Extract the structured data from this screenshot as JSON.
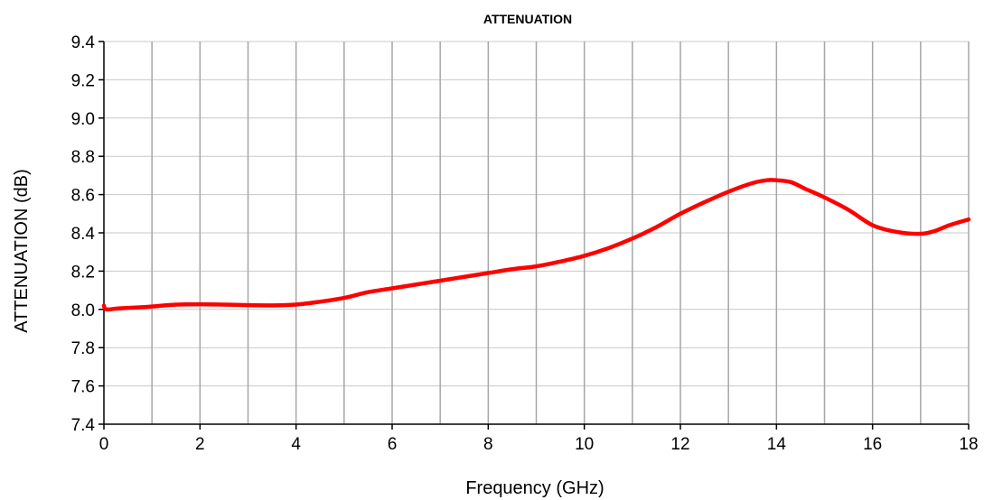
{
  "chart_data": {
    "type": "line",
    "title": "ATTENUATION",
    "xlabel": "Frequency (GHz)",
    "ylabel": "ATTENUATION (dB)",
    "xlim": [
      0,
      18
    ],
    "ylim": [
      7.4,
      9.4
    ],
    "x_ticks": [
      0,
      2,
      4,
      6,
      8,
      10,
      12,
      14,
      16,
      18
    ],
    "x_tick_labels": [
      "0",
      "2",
      "4",
      "6",
      "8",
      "10",
      "12",
      "14",
      "16",
      "18"
    ],
    "y_ticks": [
      7.4,
      7.6,
      7.8,
      8.0,
      8.2,
      8.4,
      8.6,
      8.8,
      9.0,
      9.2,
      9.4
    ],
    "y_tick_labels": [
      "7.4",
      "7.6",
      "7.8",
      "8.0",
      "8.2",
      "8.4",
      "8.6",
      "8.8",
      "9.0",
      "9.2",
      "9.4"
    ],
    "x_grid_every": 1,
    "grid": true,
    "legend": "none",
    "series": [
      {
        "color": "#ff0000",
        "x": [
          0,
          0.05,
          0.3,
          0.7,
          1.0,
          1.5,
          2.0,
          2.5,
          3.0,
          3.5,
          4.0,
          4.5,
          5.0,
          5.5,
          6.0,
          6.5,
          7.0,
          7.5,
          8.0,
          8.5,
          9.0,
          9.5,
          10.0,
          10.5,
          11.0,
          11.5,
          12.0,
          12.5,
          13.0,
          13.5,
          13.8,
          14.0,
          14.3,
          14.6,
          15.0,
          15.5,
          16.0,
          16.5,
          17.0,
          17.3,
          17.6,
          18.0
        ],
        "y": [
          8.02,
          8.0,
          8.005,
          8.01,
          8.015,
          8.025,
          8.027,
          8.025,
          8.022,
          8.021,
          8.025,
          8.04,
          8.06,
          8.09,
          8.11,
          8.13,
          8.15,
          8.17,
          8.19,
          8.21,
          8.225,
          8.25,
          8.28,
          8.32,
          8.37,
          8.43,
          8.5,
          8.56,
          8.615,
          8.66,
          8.675,
          8.675,
          8.665,
          8.63,
          8.585,
          8.52,
          8.44,
          8.405,
          8.395,
          8.41,
          8.44,
          8.47
        ]
      }
    ]
  }
}
